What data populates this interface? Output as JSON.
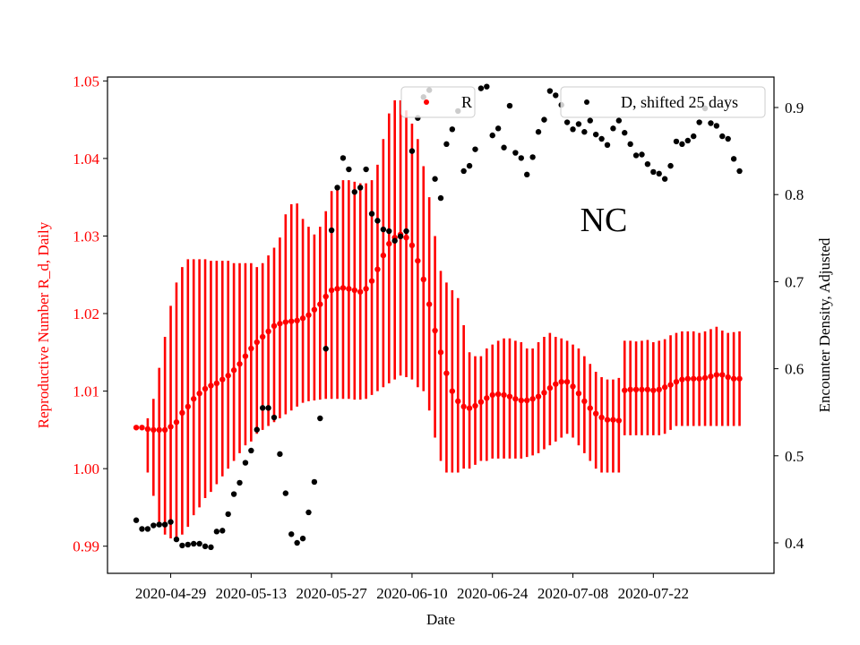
{
  "chart_data": {
    "type": "scatter",
    "title": "",
    "xlabel": "Date",
    "ylabel_left": "Reproductive Number R_d, Daily",
    "ylabel_right": "Encounter Density, Adjusted",
    "annotation": "NC",
    "grid": false,
    "colors": {
      "R": "#ff0000",
      "D": "#000000",
      "axis_left_text": "#ff0000",
      "axis_right_text": "#000000"
    },
    "xlim": [
      "2020-04-18",
      "2020-08-12"
    ],
    "ylim_left": [
      0.9865,
      1.0505
    ],
    "ylim_right": [
      0.365,
      0.935
    ],
    "x_tick_labels": [
      "2020-04-29",
      "2020-05-13",
      "2020-05-27",
      "2020-06-10",
      "2020-06-24",
      "2020-07-08",
      "2020-07-22"
    ],
    "y_left_ticks": [
      "0.99",
      "1.00",
      "1.01",
      "1.02",
      "1.03",
      "1.04",
      "1.05"
    ],
    "y_right_ticks": [
      "0.4",
      "0.5",
      "0.6",
      "0.7",
      "0.8",
      "0.9"
    ],
    "legend": [
      {
        "label": "R",
        "position": "upper-center"
      },
      {
        "label": "D, shifted 25 days",
        "position": "upper-right"
      }
    ],
    "series": [
      {
        "name": "R",
        "axis": "left",
        "x": [
          "2020-04-23",
          "2020-04-24",
          "2020-04-25",
          "2020-04-26",
          "2020-04-27",
          "2020-04-28",
          "2020-04-29",
          "2020-04-30",
          "2020-05-01",
          "2020-05-02",
          "2020-05-03",
          "2020-05-04",
          "2020-05-05",
          "2020-05-06",
          "2020-05-07",
          "2020-05-08",
          "2020-05-09",
          "2020-05-10",
          "2020-05-11",
          "2020-05-12",
          "2020-05-13",
          "2020-05-14",
          "2020-05-15",
          "2020-05-16",
          "2020-05-17",
          "2020-05-18",
          "2020-05-19",
          "2020-05-20",
          "2020-05-21",
          "2020-05-22",
          "2020-05-23",
          "2020-05-24",
          "2020-05-25",
          "2020-05-26",
          "2020-05-27",
          "2020-05-28",
          "2020-05-29",
          "2020-05-30",
          "2020-05-31",
          "2020-06-01",
          "2020-06-02",
          "2020-06-03",
          "2020-06-04",
          "2020-06-05",
          "2020-06-06",
          "2020-06-07",
          "2020-06-08",
          "2020-06-09",
          "2020-06-10",
          "2020-06-11",
          "2020-06-12",
          "2020-06-13",
          "2020-06-14",
          "2020-06-15",
          "2020-06-16",
          "2020-06-17",
          "2020-06-18",
          "2020-06-19",
          "2020-06-20",
          "2020-06-21",
          "2020-06-22",
          "2020-06-23",
          "2020-06-24",
          "2020-06-25",
          "2020-06-26",
          "2020-06-27",
          "2020-06-28",
          "2020-06-29",
          "2020-06-30",
          "2020-07-01",
          "2020-07-02",
          "2020-07-03",
          "2020-07-04",
          "2020-07-05",
          "2020-07-06",
          "2020-07-07",
          "2020-07-08",
          "2020-07-09",
          "2020-07-10",
          "2020-07-11",
          "2020-07-12",
          "2020-07-13",
          "2020-07-14",
          "2020-07-15",
          "2020-07-16",
          "2020-07-17",
          "2020-07-18",
          "2020-07-19",
          "2020-07-20",
          "2020-07-21",
          "2020-07-22",
          "2020-07-23",
          "2020-07-24",
          "2020-07-25",
          "2020-07-26",
          "2020-07-27",
          "2020-07-28",
          "2020-07-29",
          "2020-07-30",
          "2020-07-31",
          "2020-08-01",
          "2020-08-02",
          "2020-08-03",
          "2020-08-04",
          "2020-08-05",
          "2020-08-06"
        ],
        "y": [
          1.0053,
          1.0053,
          1.0051,
          1.005,
          1.005,
          1.005,
          1.0054,
          1.006,
          1.0072,
          1.008,
          1.009,
          1.0097,
          1.0103,
          1.0107,
          1.011,
          1.0115,
          1.012,
          1.0127,
          1.0135,
          1.0145,
          1.0155,
          1.0163,
          1.017,
          1.0177,
          1.0184,
          1.0187,
          1.0189,
          1.019,
          1.0191,
          1.0194,
          1.0198,
          1.0205,
          1.0212,
          1.0222,
          1.023,
          1.0232,
          1.0233,
          1.0232,
          1.023,
          1.0228,
          1.0232,
          1.0242,
          1.0257,
          1.0275,
          1.029,
          1.0298,
          1.0302,
          1.0298,
          1.0288,
          1.0268,
          1.0244,
          1.0212,
          1.0178,
          1.015,
          1.0123,
          1.01,
          1.0087,
          1.008,
          1.0078,
          1.0081,
          1.0086,
          1.0091,
          1.0095,
          1.0096,
          1.0095,
          1.0093,
          1.009,
          1.0088,
          1.0088,
          1.009,
          1.0093,
          1.0098,
          1.0104,
          1.0109,
          1.0112,
          1.0112,
          1.0106,
          1.0097,
          1.0087,
          1.0078,
          1.0071,
          1.0066,
          1.0063,
          1.0063,
          1.0062,
          1.0101,
          1.0102,
          1.0102,
          1.0102,
          1.0102,
          1.0101,
          1.0102,
          1.0105,
          1.0108,
          1.0112,
          1.0115,
          1.0116,
          1.0116,
          1.0116,
          1.0117,
          1.0119,
          1.0121,
          1.0121,
          1.0118,
          1.0116,
          1.0116
        ],
        "err_low": [
          1.0053,
          1.0053,
          0.9995,
          0.9965,
          0.9925,
          0.9915,
          0.991,
          0.991,
          0.9915,
          0.9925,
          0.994,
          0.995,
          0.9962,
          0.997,
          0.998,
          0.999,
          1.0,
          1.001,
          1.002,
          1.003,
          1.0035,
          1.0045,
          1.005,
          1.0055,
          1.006,
          1.0065,
          1.007,
          1.0075,
          1.008,
          1.0085,
          1.0087,
          1.0088,
          1.0089,
          1.009,
          1.009,
          1.009,
          1.009,
          1.009,
          1.0089,
          1.0089,
          1.009,
          1.0095,
          1.01,
          1.0105,
          1.011,
          1.0115,
          1.012,
          1.0118,
          1.0115,
          1.0105,
          1.01,
          1.0075,
          1.004,
          1.001,
          0.9995,
          0.9995,
          0.9995,
          1.0,
          1.0,
          1.0005,
          1.001,
          1.001,
          1.0013,
          1.0013,
          1.0013,
          1.0013,
          1.0013,
          1.0013,
          1.0015,
          1.0017,
          1.002,
          1.0025,
          1.003,
          1.0035,
          1.004,
          1.0045,
          1.004,
          1.003,
          1.002,
          1.001,
          1.0,
          0.9995,
          0.9995,
          0.9995,
          0.9995,
          1.0043,
          1.0043,
          1.0043,
          1.0043,
          1.0043,
          1.0043,
          1.0043,
          1.0045,
          1.005,
          1.0055,
          1.0055,
          1.0055,
          1.0055,
          1.0055,
          1.0055,
          1.0055,
          1.0055,
          1.0055,
          1.0055,
          1.0055,
          1.0055
        ],
        "err_high": [
          1.0053,
          1.0053,
          1.0065,
          1.009,
          1.013,
          1.017,
          1.021,
          1.024,
          1.026,
          1.027,
          1.027,
          1.027,
          1.027,
          1.0268,
          1.0268,
          1.0268,
          1.0268,
          1.0265,
          1.0265,
          1.0265,
          1.0265,
          1.026,
          1.0265,
          1.0275,
          1.0285,
          1.0298,
          1.0328,
          1.0341,
          1.0342,
          1.0322,
          1.0312,
          1.0302,
          1.0312,
          1.0332,
          1.0358,
          1.0365,
          1.0372,
          1.0372,
          1.037,
          1.0368,
          1.0368,
          1.0372,
          1.0392,
          1.0425,
          1.0458,
          1.0475,
          1.0475,
          1.0462,
          1.0445,
          1.0425,
          1.039,
          1.035,
          1.03,
          1.0255,
          1.024,
          1.023,
          1.022,
          1.0185,
          1.015,
          1.0145,
          1.0145,
          1.0155,
          1.016,
          1.0165,
          1.0168,
          1.0168,
          1.0165,
          1.0163,
          1.0155,
          1.0155,
          1.0163,
          1.017,
          1.0175,
          1.017,
          1.0168,
          1.0165,
          1.016,
          1.0155,
          1.0145,
          1.0135,
          1.0125,
          1.0118,
          1.0115,
          1.0115,
          1.0117,
          1.0165,
          1.0165,
          1.0164,
          1.0165,
          1.0166,
          1.0163,
          1.0165,
          1.0167,
          1.0172,
          1.0175,
          1.0177,
          1.0177,
          1.0177,
          1.0175,
          1.0177,
          1.018,
          1.0183,
          1.0178,
          1.0175,
          1.0176,
          1.0177
        ]
      },
      {
        "name": "D, shifted 25 days",
        "axis": "right",
        "x": [
          "2020-04-23",
          "2020-04-24",
          "2020-04-25",
          "2020-04-26",
          "2020-04-27",
          "2020-04-28",
          "2020-04-29",
          "2020-04-30",
          "2020-05-01",
          "2020-05-02",
          "2020-05-03",
          "2020-05-04",
          "2020-05-05",
          "2020-05-06",
          "2020-05-07",
          "2020-05-08",
          "2020-05-09",
          "2020-05-10",
          "2020-05-11",
          "2020-05-12",
          "2020-05-13",
          "2020-05-14",
          "2020-05-15",
          "2020-05-16",
          "2020-05-17",
          "2020-05-18",
          "2020-05-19",
          "2020-05-20",
          "2020-05-21",
          "2020-05-22",
          "2020-05-23",
          "2020-05-24",
          "2020-05-25",
          "2020-05-26",
          "2020-05-27",
          "2020-05-28",
          "2020-05-29",
          "2020-05-30",
          "2020-05-31",
          "2020-06-01",
          "2020-06-02",
          "2020-06-03",
          "2020-06-04",
          "2020-06-05",
          "2020-06-06",
          "2020-06-07",
          "2020-06-08",
          "2020-06-09",
          "2020-06-10",
          "2020-06-11",
          "2020-06-12",
          "2020-06-13",
          "2020-06-14",
          "2020-06-15",
          "2020-06-16",
          "2020-06-17",
          "2020-06-18",
          "2020-06-19",
          "2020-06-20",
          "2020-06-21",
          "2020-06-22",
          "2020-06-23",
          "2020-06-24",
          "2020-06-25",
          "2020-06-26",
          "2020-06-27",
          "2020-06-28",
          "2020-06-29",
          "2020-06-30",
          "2020-07-01",
          "2020-07-02",
          "2020-07-03",
          "2020-07-04",
          "2020-07-05",
          "2020-07-06",
          "2020-07-07",
          "2020-07-08",
          "2020-07-09",
          "2020-07-10",
          "2020-07-11",
          "2020-07-12",
          "2020-07-13",
          "2020-07-14",
          "2020-07-15",
          "2020-07-16",
          "2020-07-17",
          "2020-07-18",
          "2020-07-19",
          "2020-07-20",
          "2020-07-21",
          "2020-07-22",
          "2020-07-23",
          "2020-07-24",
          "2020-07-25",
          "2020-07-26",
          "2020-07-27",
          "2020-07-28",
          "2020-07-29",
          "2020-07-30",
          "2020-07-31",
          "2020-08-01",
          "2020-08-02",
          "2020-08-03",
          "2020-08-04",
          "2020-08-05",
          "2020-08-06"
        ],
        "y": [
          0.426,
          0.416,
          0.416,
          0.42,
          0.421,
          0.421,
          0.424,
          0.404,
          0.397,
          0.398,
          0.399,
          0.399,
          0.396,
          0.395,
          0.413,
          0.414,
          0.433,
          0.456,
          0.469,
          0.492,
          0.506,
          0.53,
          0.555,
          0.555,
          0.544,
          0.502,
          0.457,
          0.41,
          0.4,
          0.405,
          0.435,
          0.47,
          0.543,
          0.623,
          0.759,
          0.808,
          0.842,
          0.829,
          0.803,
          0.808,
          0.829,
          0.778,
          0.77,
          0.76,
          0.758,
          0.747,
          0.752,
          0.758,
          0.85,
          0.888,
          0.912,
          0.92,
          0.818,
          0.796,
          0.858,
          0.875,
          0.896,
          0.827,
          0.833,
          0.852,
          0.922,
          0.924,
          0.868,
          0.876,
          0.854,
          0.902,
          0.848,
          0.842,
          0.823,
          0.843,
          0.872,
          0.886,
          0.919,
          0.914,
          0.903,
          0.883,
          0.875,
          0.881,
          0.872,
          0.885,
          0.869,
          0.864,
          0.857,
          0.876,
          0.885,
          0.871,
          0.858,
          0.845,
          0.846,
          0.835,
          0.826,
          0.824,
          0.818,
          0.833,
          0.861,
          0.858,
          0.862,
          0.867,
          0.883,
          0.899,
          0.882,
          0.879,
          0.867,
          0.864,
          0.841,
          0.827
        ]
      }
    ]
  }
}
